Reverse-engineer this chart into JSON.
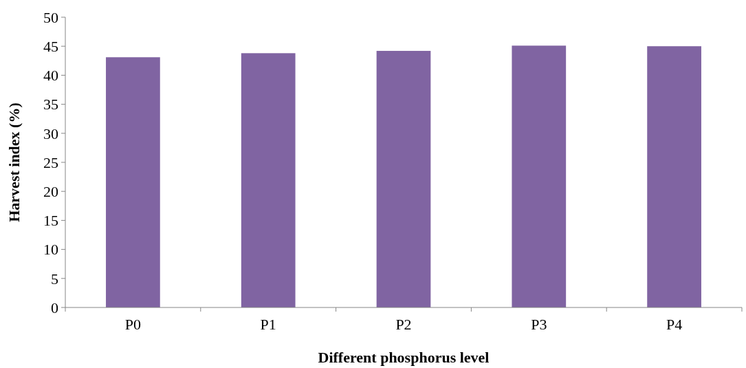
{
  "chart_data": {
    "type": "bar",
    "xlabel": "Different phosphorus level",
    "ylabel": "Harvest index (%)",
    "categories": [
      "P0",
      "P1",
      "P2",
      "P3",
      "P4"
    ],
    "values": [
      43.1,
      43.8,
      44.2,
      45.1,
      45.0
    ],
    "color": "#8064a2",
    "ylim": [
      0,
      50
    ],
    "yticks": [
      0,
      5,
      10,
      15,
      20,
      25,
      30,
      35,
      40,
      45,
      50
    ],
    "grid": false
  }
}
